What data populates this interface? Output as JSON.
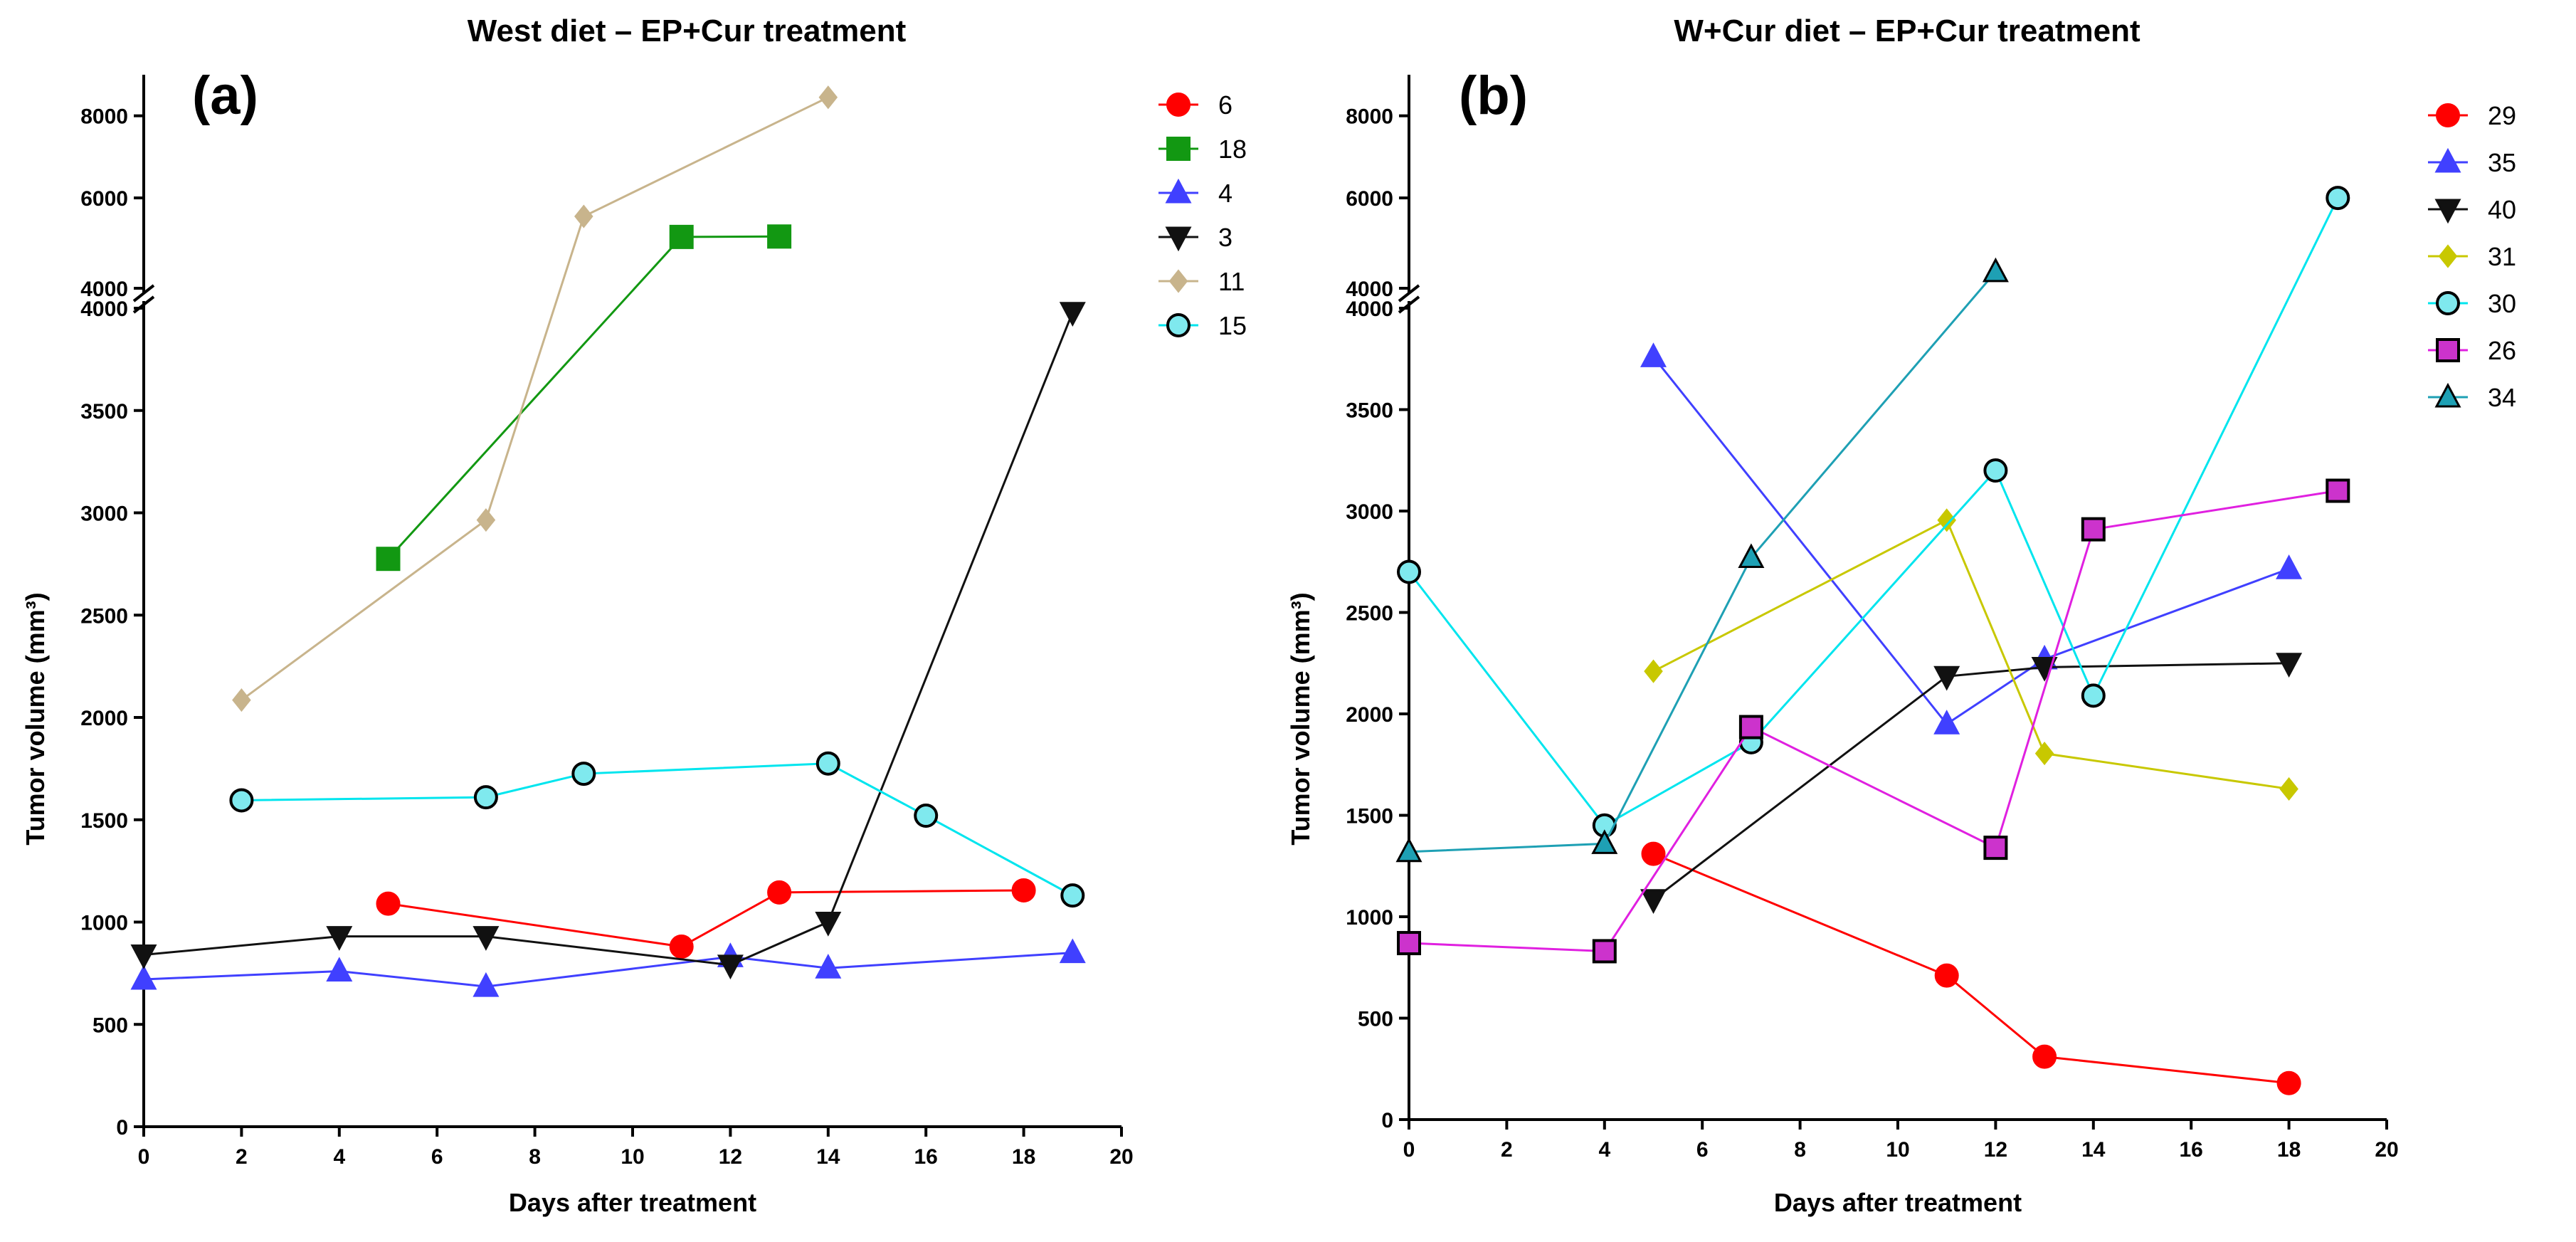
{
  "chart_data": [
    {
      "type": "line",
      "panel_label": "(a)",
      "title": "West diet – EP+Cur treatment",
      "xlabel": "Days after treatment",
      "ylabel": "Tumor volume (mm³)",
      "xlim": [
        0,
        20
      ],
      "x_ticks": [
        0,
        2,
        4,
        6,
        8,
        10,
        12,
        14,
        16,
        18,
        20
      ],
      "y_break": {
        "lower": [
          0,
          4000
        ],
        "upper": [
          3800,
          9000
        ]
      },
      "y_ticks_lower": [
        0,
        500,
        1000,
        1500,
        2000,
        2500,
        3000,
        3500,
        4000
      ],
      "y_ticks_upper": [
        4000,
        6000,
        8000
      ],
      "legend_position": "right",
      "series": [
        {
          "name": "6",
          "color": "#ff0000",
          "marker": "circle",
          "marker_fill": "#ff0000",
          "x": [
            5,
            11,
            13,
            18
          ],
          "y": [
            1090,
            880,
            1145,
            1155
          ]
        },
        {
          "name": "18",
          "color": "#129812",
          "marker": "square",
          "marker_fill": "#129812",
          "x": [
            5,
            11,
            13
          ],
          "y": [
            2775,
            5050,
            5060
          ]
        },
        {
          "name": "4",
          "color": "#4040ff",
          "marker": "triangle",
          "marker_fill": "#4040ff",
          "x": [
            0,
            4,
            7,
            12,
            14,
            19
          ],
          "y": [
            720,
            760,
            685,
            830,
            775,
            850
          ]
        },
        {
          "name": "3",
          "color": "#111111",
          "marker": "triangle-down",
          "marker_fill": "#111111",
          "x": [
            0,
            4,
            7,
            12,
            14,
            19
          ],
          "y": [
            840,
            930,
            930,
            790,
            1000,
            3980
          ]
        },
        {
          "name": "11",
          "color": "#c8b48c",
          "marker": "diamond",
          "marker_fill": "#c8b48c",
          "x": [
            2,
            7,
            9,
            14
          ],
          "y": [
            2085,
            2965,
            5550,
            8450
          ]
        },
        {
          "name": "15",
          "color": "#00e5ee",
          "marker": "circle",
          "marker_fill": "#7fe9ee",
          "x": [
            2,
            7,
            9,
            14,
            16,
            19
          ],
          "y": [
            1595,
            1610,
            1725,
            1775,
            1520,
            1130
          ]
        }
      ]
    },
    {
      "type": "line",
      "panel_label": "(b)",
      "title": "W+Cur diet – EP+Cur treatment",
      "xlabel": "Days after treatment",
      "ylabel": "Tumor volume (mm³)",
      "xlim": [
        0,
        20
      ],
      "x_ticks": [
        0,
        2,
        4,
        6,
        8,
        10,
        12,
        14,
        16,
        18,
        20
      ],
      "y_break": {
        "lower": [
          0,
          4000
        ],
        "upper": [
          3800,
          9000
        ]
      },
      "y_ticks_lower": [
        0,
        500,
        1000,
        1500,
        2000,
        2500,
        3000,
        3500,
        4000
      ],
      "y_ticks_upper": [
        4000,
        6000,
        8000
      ],
      "legend_position": "right",
      "series": [
        {
          "name": "29",
          "color": "#ff0000",
          "marker": "circle",
          "marker_fill": "#ff0000",
          "x": [
            5,
            11,
            13,
            18
          ],
          "y": [
            1310,
            710,
            310,
            180
          ]
        },
        {
          "name": "35",
          "color": "#4040ff",
          "marker": "triangle",
          "marker_fill": "#4040ff",
          "x": [
            5,
            11,
            13,
            18
          ],
          "y": [
            3760,
            1950,
            2270,
            2715
          ]
        },
        {
          "name": "40",
          "color": "#111111",
          "marker": "triangle-down",
          "marker_fill": "#111111",
          "x": [
            5,
            11,
            13,
            18
          ],
          "y": [
            1085,
            2185,
            2230,
            2250
          ]
        },
        {
          "name": "31",
          "color": "#c8c800",
          "marker": "diamond",
          "marker_fill": "#c8c800",
          "x": [
            5,
            11,
            13,
            18
          ],
          "y": [
            2210,
            2955,
            1805,
            1630
          ]
        },
        {
          "name": "30",
          "color": "#00e5ee",
          "marker": "circle",
          "marker_fill": "#7fe9ee",
          "x": [
            0,
            4,
            7,
            12,
            14,
            19
          ],
          "y": [
            2700,
            1450,
            1860,
            3200,
            2090,
            6000
          ]
        },
        {
          "name": "26",
          "color": "#e020e0",
          "marker": "square",
          "marker_fill": "#cc33cc",
          "x": [
            0,
            4,
            7,
            12,
            14,
            19
          ],
          "y": [
            870,
            830,
            1935,
            1340,
            2910,
            3100
          ]
        },
        {
          "name": "34",
          "color": "#1ea0b4",
          "marker": "triangle",
          "marker_fill": "#1ea0b4",
          "x": [
            0,
            4,
            7,
            12
          ],
          "y": [
            1320,
            1360,
            2770,
            4200
          ]
        }
      ]
    }
  ]
}
